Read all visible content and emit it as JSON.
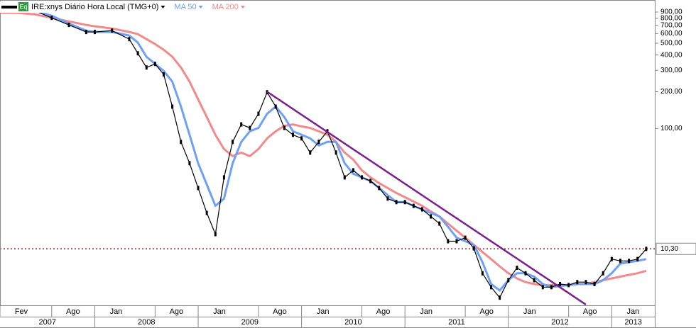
{
  "chart_data": {
    "type": "line",
    "badge": "Eq",
    "log_scale": true,
    "xlim": [
      "2007-02",
      "2013-06"
    ],
    "ylim": [
      3.5,
      1130
    ],
    "yticks": [
      {
        "value": 900,
        "label": "900,00"
      },
      {
        "value": 800,
        "label": "800,00"
      },
      {
        "value": 700,
        "label": "700,00"
      },
      {
        "value": 600,
        "label": "600,00"
      },
      {
        "value": 500,
        "label": "500,00"
      },
      {
        "value": 400,
        "label": "400,00"
      },
      {
        "value": 300,
        "label": "300,00"
      },
      {
        "value": 200,
        "label": "200,00"
      },
      {
        "value": 100,
        "label": "100,00"
      }
    ],
    "xticks": [
      {
        "value": "2007-02",
        "label": "Fev"
      },
      {
        "value": "2007-08",
        "label": "Ago"
      },
      {
        "value": "2008-01",
        "label": "Jan"
      },
      {
        "value": "2008-08",
        "label": "Ago"
      },
      {
        "value": "2009-01",
        "label": "Jan"
      },
      {
        "value": "2009-08",
        "label": "Ago"
      },
      {
        "value": "2010-01",
        "label": "Jan"
      },
      {
        "value": "2010-08",
        "label": "Ago"
      },
      {
        "value": "2011-01",
        "label": "Jan"
      },
      {
        "value": "2011-08",
        "label": "Ago"
      },
      {
        "value": "2012-01",
        "label": "Jan"
      },
      {
        "value": "2012-08",
        "label": "Ago"
      },
      {
        "value": "2013-01",
        "label": "Jan"
      }
    ],
    "year_ticks": [
      2007,
      2008,
      2009,
      2010,
      2011,
      2012,
      2013
    ],
    "price_marker": {
      "value": 10.3,
      "label": "10,30",
      "color": "#c00000"
    },
    "trendline": {
      "x": [
        "2009-09",
        "2012-10"
      ],
      "values": [
        200,
        3.6
      ],
      "color": "#7b1f8c"
    },
    "x": [
      "2007-02",
      "2007-04",
      "2007-06",
      "2007-08",
      "2007-10",
      "2007-12",
      "2008-01",
      "2008-03",
      "2008-05",
      "2008-06",
      "2008-07",
      "2008-08",
      "2008-09",
      "2008-10",
      "2008-11",
      "2008-12",
      "2009-01",
      "2009-02",
      "2009-03",
      "2009-04",
      "2009-05",
      "2009-06",
      "2009-07",
      "2009-08",
      "2009-09",
      "2009-10",
      "2009-11",
      "2009-12",
      "2010-01",
      "2010-02",
      "2010-03",
      "2010-04",
      "2010-05",
      "2010-06",
      "2010-07",
      "2010-08",
      "2010-09",
      "2010-10",
      "2010-11",
      "2010-12",
      "2011-01",
      "2011-02",
      "2011-03",
      "2011-04",
      "2011-05",
      "2011-06",
      "2011-07",
      "2011-08",
      "2011-09",
      "2011-10",
      "2011-11",
      "2011-12",
      "2012-01",
      "2012-02",
      "2012-03",
      "2012-04",
      "2012-05",
      "2012-06",
      "2012-07",
      "2012-08",
      "2012-09",
      "2012-10",
      "2012-11",
      "2012-12",
      "2013-01",
      "2013-02",
      "2013-03",
      "2013-04",
      "2013-05"
    ],
    "series": [
      {
        "name": "IRE:xnys Diário Hora Local (TMG+0)",
        "color": "#000000",
        "values": [
          986,
          958,
          923,
          807,
          706,
          618,
          618,
          634,
          540,
          413,
          316,
          338,
          277,
          151,
          77.6,
          51.9,
          32.5,
          20.3,
          13.6,
          39.7,
          77.6,
          108,
          101,
          132,
          198,
          151,
          101,
          88.7,
          82.9,
          63.4,
          77.6,
          94.8,
          63.4,
          39.7,
          45.4,
          39.7,
          37.1,
          32.5,
          26.6,
          24.9,
          24.9,
          23.2,
          21.7,
          19.0,
          16.6,
          11.9,
          11.9,
          12.7,
          10.4,
          6.5,
          5.0,
          4.1,
          5.7,
          7.2,
          6.5,
          5.7,
          5.0,
          5.0,
          5.3,
          5.2,
          5.5,
          5.5,
          5.3,
          6.5,
          8.5,
          8.2,
          8.2,
          8.5,
          10.3
        ]
      },
      {
        "name": "MA 50",
        "color": "#6fa0f5",
        "values": [
          961,
          961,
          923,
          840,
          725,
          634,
          618,
          618,
          578,
          505,
          387,
          338,
          296,
          242,
          151,
          88.7,
          51.9,
          34.7,
          23.2,
          26.6,
          51.9,
          77.6,
          94.8,
          101,
          132,
          151,
          124,
          94.8,
          88.7,
          82.9,
          72.5,
          77.6,
          77.6,
          51.9,
          42.5,
          39.7,
          37.1,
          32.5,
          28.4,
          24.9,
          24.9,
          23.2,
          21.7,
          20.3,
          19.0,
          15.6,
          12.7,
          11.9,
          11.1,
          8.0,
          5.3,
          4.7,
          5.7,
          6.5,
          6.5,
          6.1,
          5.3,
          5.0,
          5.1,
          5.2,
          5.3,
          5.3,
          5.3,
          5.7,
          6.5,
          7.8,
          8.0,
          8.2,
          8.5
        ]
      },
      {
        "name": "MA 200",
        "color": "#f28a8a",
        "values": [
          887,
          887,
          863,
          807,
          755,
          706,
          688,
          660,
          618,
          593,
          540,
          492,
          442,
          387,
          316,
          242,
          173,
          124,
          88.7,
          67.8,
          59.3,
          63.4,
          59.3,
          67.8,
          82.9,
          94.8,
          105,
          108,
          104,
          101,
          94.8,
          88.7,
          77.6,
          63.4,
          55.5,
          45.4,
          39.7,
          35.6,
          32.5,
          29.6,
          27.3,
          25.2,
          23.2,
          20.9,
          19.0,
          16.6,
          14.5,
          12.7,
          11.1,
          9.7,
          8.5,
          7.4,
          6.5,
          5.9,
          5.5,
          5.3,
          5.2,
          5.2,
          5.2,
          5.2,
          5.3,
          5.3,
          5.5,
          5.7,
          5.9,
          6.1,
          6.3,
          6.5,
          6.8
        ]
      }
    ]
  }
}
